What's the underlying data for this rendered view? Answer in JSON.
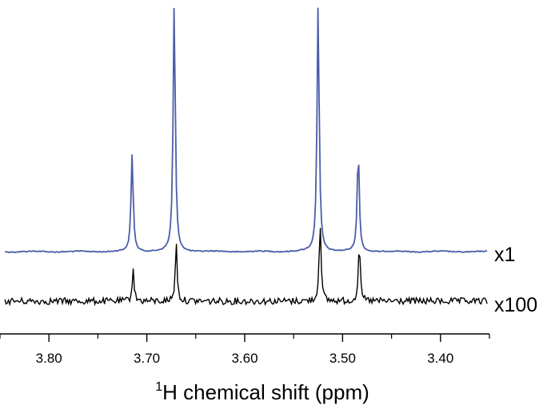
{
  "chart_data": {
    "type": "line",
    "title": "",
    "xlabel": {
      "superscript": "1",
      "text": "H chemical shift (ppm)"
    },
    "ylabel": "",
    "xlim": [
      3.85,
      3.35
    ],
    "x_reversed": true,
    "y_axis_visible": false,
    "grid": false,
    "x_ticks": [
      3.8,
      3.7,
      3.6,
      3.5,
      3.4
    ],
    "x_tick_labels": [
      "3.80",
      "3.70",
      "3.60",
      "3.50",
      "3.40"
    ],
    "peaks_ppm": [
      3.715,
      3.672,
      3.525,
      3.484
    ],
    "series": [
      {
        "name": "x1",
        "color": "#4a5eaa",
        "baseline": 0,
        "peaks": [
          {
            "x": 3.715,
            "height": 0.39
          },
          {
            "x": 3.672,
            "height": 1.0
          },
          {
            "x": 3.525,
            "height": 0.99
          },
          {
            "x": 3.484,
            "height": 0.4
          }
        ],
        "noise": "low"
      },
      {
        "name": "x100",
        "color": "#000000",
        "baseline": 0,
        "peaks": [
          {
            "x": 3.714,
            "height": 0.14
          },
          {
            "x": 3.67,
            "height": 0.25
          },
          {
            "x": 3.523,
            "height": 0.35
          },
          {
            "x": 3.483,
            "height": 0.25
          }
        ],
        "noise": "high"
      }
    ]
  }
}
